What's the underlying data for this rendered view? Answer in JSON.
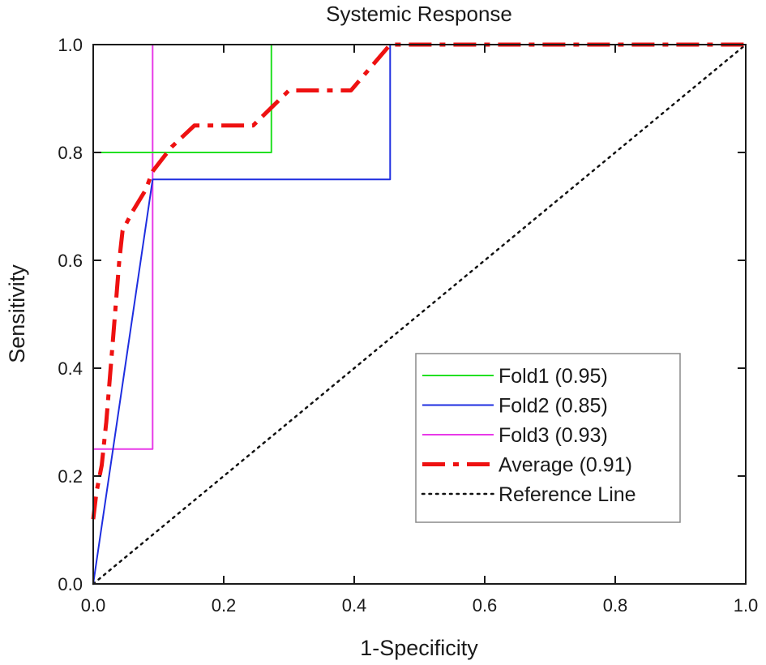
{
  "chart_data": {
    "type": "line",
    "title": "Systemic Response",
    "xlabel": "1-Specificity",
    "ylabel": "Sensitivity",
    "xlim": [
      0.0,
      1.0
    ],
    "ylim": [
      0.0,
      1.0
    ],
    "x_ticks": [
      0.0,
      0.2,
      0.4,
      0.6,
      0.8,
      1.0
    ],
    "y_ticks": [
      0.0,
      0.2,
      0.4,
      0.6,
      0.8,
      1.0
    ],
    "x_tick_labels": [
      "0.0",
      "0.2",
      "0.4",
      "0.6",
      "0.8",
      "1.0"
    ],
    "y_tick_labels": [
      "0.0",
      "0.2",
      "0.4",
      "0.6",
      "0.8",
      "1.0"
    ],
    "grid": false,
    "legend_position": "bottom-right",
    "series": [
      {
        "name": "Fold1 (0.95)",
        "color": "#22e022",
        "style": "solid",
        "points": [
          [
            0,
            0
          ],
          [
            0,
            0.8
          ],
          [
            0.273,
            0.8
          ],
          [
            0.273,
            1.0
          ],
          [
            1.0,
            1.0
          ]
        ]
      },
      {
        "name": "Fold2 (0.85)",
        "color": "#1e2ee0",
        "style": "solid",
        "points": [
          [
            0,
            0
          ],
          [
            0.091,
            0.75
          ],
          [
            0.455,
            0.75
          ],
          [
            0.455,
            1.0
          ],
          [
            1.0,
            1.0
          ]
        ]
      },
      {
        "name": "Fold3 (0.93)",
        "color": "#e83ae8",
        "style": "solid",
        "points": [
          [
            0,
            0
          ],
          [
            0,
            0.25
          ],
          [
            0.091,
            0.25
          ],
          [
            0.091,
            1.0
          ],
          [
            1.0,
            1.0
          ]
        ]
      },
      {
        "name": "Average (0.91)",
        "color": "#ee1111",
        "style": "dashdot",
        "points": [
          [
            0,
            0.12
          ],
          [
            0.005,
            0.17
          ],
          [
            0.013,
            0.22
          ],
          [
            0.02,
            0.3
          ],
          [
            0.03,
            0.45
          ],
          [
            0.04,
            0.6
          ],
          [
            0.045,
            0.655
          ],
          [
            0.06,
            0.69
          ],
          [
            0.08,
            0.73
          ],
          [
            0.091,
            0.765
          ],
          [
            0.12,
            0.81
          ],
          [
            0.155,
            0.85
          ],
          [
            0.245,
            0.85
          ],
          [
            0.3,
            0.915
          ],
          [
            0.395,
            0.915
          ],
          [
            0.455,
            1.0
          ],
          [
            1.0,
            1.0
          ]
        ]
      },
      {
        "name": "Reference Line",
        "color": "#111111",
        "style": "dotted",
        "points": [
          [
            0,
            0
          ],
          [
            1.0,
            1.0
          ]
        ]
      }
    ]
  }
}
